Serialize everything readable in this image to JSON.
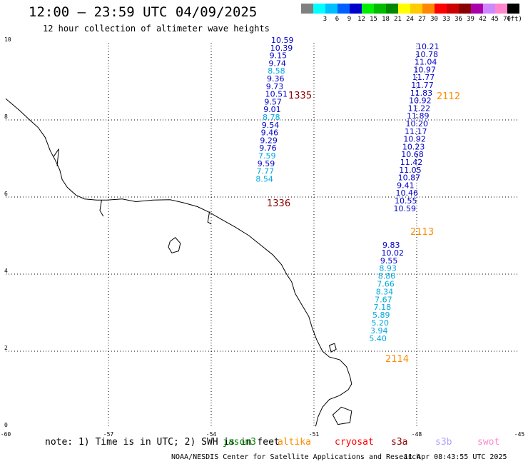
{
  "title": "12:00 – 23:59 UTC 04/09/2025",
  "subtitle": "12 hour collection of altimeter wave heights",
  "legend": {
    "unit": "(ft)",
    "bins": [
      {
        "label": "",
        "color": "#808080"
      },
      {
        "label": "3",
        "color": "#00ffff"
      },
      {
        "label": "6",
        "color": "#00bfff"
      },
      {
        "label": "9",
        "color": "#0060ff"
      },
      {
        "label": "12",
        "color": "#0000cc"
      },
      {
        "label": "15",
        "color": "#00ee00"
      },
      {
        "label": "18",
        "color": "#00bb00"
      },
      {
        "label": "21",
        "color": "#008800"
      },
      {
        "label": "24",
        "color": "#ffff00"
      },
      {
        "label": "27",
        "color": "#ffcc00"
      },
      {
        "label": "30",
        "color": "#ff8800"
      },
      {
        "label": "33",
        "color": "#ff0000"
      },
      {
        "label": "36",
        "color": "#cc0000"
      },
      {
        "label": "39",
        "color": "#880000"
      },
      {
        "label": "42",
        "color": "#aa00aa"
      },
      {
        "label": "45",
        "color": "#cc88ff"
      },
      {
        "label": "70",
        "color": "#ff88cc"
      },
      {
        "label": "",
        "color": "#000000"
      }
    ]
  },
  "axes": {
    "lon_ticks": [
      "-60",
      "-57",
      "-54",
      "-51",
      "-48",
      "-45"
    ],
    "lat_ticks": [
      "0",
      "2",
      "4",
      "6",
      "8",
      "10"
    ],
    "lon_range": [
      -60,
      -45
    ],
    "lat_range": [
      0,
      10
    ],
    "grid": "dotted"
  },
  "tracks": [
    {
      "pass_label": "1335",
      "pass_color": "#8b0000",
      "points": [
        {
          "text": "10.59",
          "color": "#0000cc"
        },
        {
          "text": "10.39",
          "color": "#0000cc"
        },
        {
          "text": "9.15",
          "color": "#0000cc"
        },
        {
          "text": "9.74",
          "color": "#0000cc"
        },
        {
          "text": "8.58",
          "color": "#00a8e0"
        },
        {
          "text": "9.36",
          "color": "#0000cc"
        },
        {
          "text": "9.73",
          "color": "#0000cc"
        },
        {
          "text": "10.51",
          "color": "#0000cc"
        },
        {
          "text": "9.57",
          "color": "#0000cc"
        },
        {
          "text": "9.01",
          "color": "#0000cc"
        },
        {
          "text": "8.78",
          "color": "#00a8e0"
        },
        {
          "text": "9.54",
          "color": "#0000cc"
        },
        {
          "text": "9.46",
          "color": "#0000cc"
        },
        {
          "text": "9.29",
          "color": "#0000cc"
        },
        {
          "text": "9.76",
          "color": "#0000cc"
        },
        {
          "text": "7.59",
          "color": "#00a8e0"
        },
        {
          "text": "9.59",
          "color": "#0000cc"
        },
        {
          "text": "7.77",
          "color": "#00a8e0"
        },
        {
          "text": "8.54",
          "color": "#00a8e0"
        }
      ]
    },
    {
      "pass_label": "1336",
      "pass_color": "#8b0000",
      "points": []
    },
    {
      "pass_label": "2112",
      "pass_color": "#ff8c00",
      "points": [
        {
          "text": "10.21",
          "color": "#0000cc"
        },
        {
          "text": "10.78",
          "color": "#0000cc"
        },
        {
          "text": "11.04",
          "color": "#0000cc"
        },
        {
          "text": "10.97",
          "color": "#0000cc"
        },
        {
          "text": "11.77",
          "color": "#0000cc"
        },
        {
          "text": "11.77",
          "color": "#0000cc"
        },
        {
          "text": "11.83",
          "color": "#0000cc"
        },
        {
          "text": "10.92",
          "color": "#0000cc"
        },
        {
          "text": "11.22",
          "color": "#0000cc"
        },
        {
          "text": "11.89",
          "color": "#0000cc"
        },
        {
          "text": "10.20",
          "color": "#0000cc"
        },
        {
          "text": "11.17",
          "color": "#0000cc"
        },
        {
          "text": "10.92",
          "color": "#0000cc"
        },
        {
          "text": "10.23",
          "color": "#0000cc"
        },
        {
          "text": "10.68",
          "color": "#0000cc"
        },
        {
          "text": "11.42",
          "color": "#0000cc"
        },
        {
          "text": "11.05",
          "color": "#0000cc"
        },
        {
          "text": "10.87",
          "color": "#0000cc"
        },
        {
          "text": "9.41",
          "color": "#0000cc"
        },
        {
          "text": "10.46",
          "color": "#0000cc"
        },
        {
          "text": "10.55",
          "color": "#0000cc"
        },
        {
          "text": "10.59",
          "color": "#0000cc"
        }
      ]
    },
    {
      "pass_label": "2113",
      "pass_color": "#ff8c00",
      "points": [
        {
          "text": "9.83",
          "color": "#0000cc"
        },
        {
          "text": "10.02",
          "color": "#0000cc"
        },
        {
          "text": "9.55",
          "color": "#0000cc"
        },
        {
          "text": "8.93",
          "color": "#00a8e0"
        },
        {
          "text": "8.86",
          "color": "#00a8e0"
        },
        {
          "text": "7.66",
          "color": "#00a8e0"
        },
        {
          "text": "8.34",
          "color": "#00a8e0"
        },
        {
          "text": "7.67",
          "color": "#00a8e0"
        },
        {
          "text": "7.18",
          "color": "#00a8e0"
        },
        {
          "text": "5.89",
          "color": "#00a8e0"
        },
        {
          "text": "5.20",
          "color": "#00a8e0"
        },
        {
          "text": "3.94",
          "color": "#00a8e0"
        },
        {
          "text": "5.40",
          "color": "#00a8e0"
        }
      ]
    },
    {
      "pass_label": "2114",
      "pass_color": "#ff8c00",
      "points": []
    }
  ],
  "note": {
    "text": "note: 1) Time is in UTC; 2) SWH is in feet",
    "satellites": [
      {
        "name": "jason3",
        "color": "#008800"
      },
      {
        "name": "altika",
        "color": "#ff8c00"
      },
      {
        "name": "cryosat",
        "color": "#ff0000"
      },
      {
        "name": "s3a",
        "color": "#8b0000"
      },
      {
        "name": "s3b",
        "color": "#b0a0ff"
      },
      {
        "name": "swot",
        "color": "#ff88cc"
      }
    ]
  },
  "footer": {
    "credit": "NOAA/NESDIS Center for Satellite Applications and Research",
    "timestamp": "11 Apr 08:43:55 UTC 2025"
  }
}
